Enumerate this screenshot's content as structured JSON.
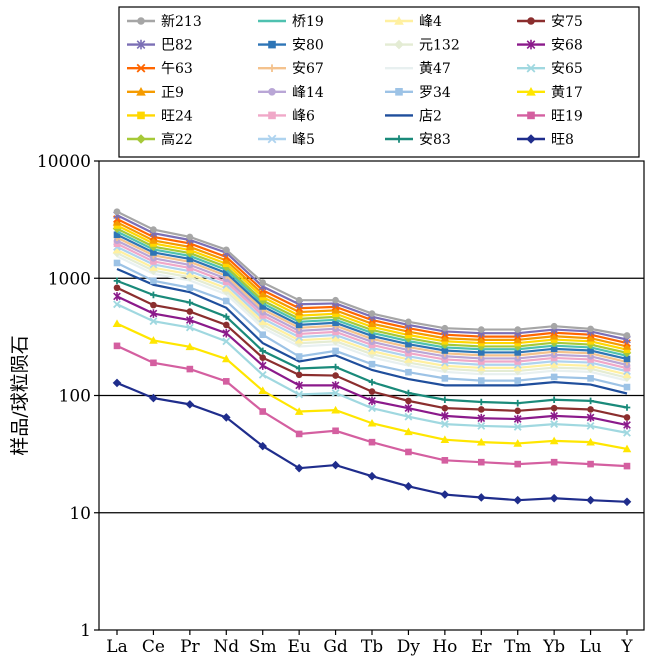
{
  "chart_data": {
    "type": "line",
    "yscale": "log",
    "ylim": [
      1,
      10000
    ],
    "yticks": [
      "1",
      "10",
      "100",
      "1000",
      "10000"
    ],
    "ylabel": "样品/球粒陨石",
    "xlabel": "",
    "categories": [
      "La",
      "Ce",
      "Pr",
      "Nd",
      "Sm",
      "Eu",
      "Gd",
      "Tb",
      "Dy",
      "Ho",
      "Er",
      "Tm",
      "Yb",
      "Lu",
      "Y"
    ],
    "grid": "horizontal",
    "legend_position": "top",
    "series": [
      {
        "name": "新213",
        "color": "#a6a6a6",
        "marker": "circle",
        "values": [
          3700,
          2600,
          2250,
          1750,
          920,
          650,
          650,
          500,
          425,
          375,
          365,
          365,
          390,
          370,
          325
        ]
      },
      {
        "name": "巴82",
        "color": "#7b6fb5",
        "marker": "star",
        "values": [
          3450,
          2420,
          2120,
          1650,
          850,
          600,
          610,
          470,
          400,
          352,
          340,
          340,
          365,
          352,
          300
        ]
      },
      {
        "name": "午63",
        "color": "#ff6600",
        "marker": "x",
        "values": [
          3200,
          2250,
          1980,
          1520,
          790,
          555,
          570,
          440,
          375,
          330,
          318,
          318,
          343,
          330,
          280
        ]
      },
      {
        "name": "正9",
        "color": "#f59b00",
        "marker": "triangle",
        "values": [
          3000,
          2100,
          1850,
          1420,
          735,
          515,
          532,
          410,
          350,
          308,
          298,
          298,
          320,
          308,
          262
        ]
      },
      {
        "name": "旺24",
        "color": "#ffd700",
        "marker": "square",
        "values": [
          2820,
          1980,
          1740,
          1330,
          690,
          480,
          498,
          385,
          328,
          290,
          280,
          280,
          300,
          290,
          246
        ]
      },
      {
        "name": "高22",
        "color": "#a6c938",
        "marker": "diamond",
        "values": [
          2650,
          1860,
          1640,
          1250,
          645,
          450,
          468,
          362,
          308,
          272,
          262,
          262,
          282,
          272,
          231
        ]
      },
      {
        "name": "桥19",
        "color": "#4fc1b0",
        "marker": "none",
        "values": [
          2500,
          1760,
          1550,
          1180,
          610,
          425,
          442,
          342,
          291,
          257,
          248,
          248,
          266,
          257,
          218
        ]
      },
      {
        "name": "安80",
        "color": "#2e75b6",
        "marker": "square",
        "values": [
          2350,
          1660,
          1460,
          1110,
          575,
          400,
          417,
          322,
          274,
          242,
          233,
          233,
          250,
          242,
          205
        ]
      },
      {
        "name": "安67",
        "color": "#f4c28d",
        "marker": "plus",
        "values": [
          2220,
          1570,
          1380,
          1050,
          543,
          378,
          394,
          304,
          259,
          229,
          220,
          220,
          236,
          229,
          193
        ]
      },
      {
        "name": "峰14",
        "color": "#b9a6d6",
        "marker": "circle",
        "values": [
          2090,
          1480,
          1300,
          990,
          512,
          356,
          371,
          287,
          244,
          216,
          207,
          207,
          222,
          216,
          182
        ]
      },
      {
        "name": "峰6",
        "color": "#f0a8c8",
        "marker": "square",
        "values": [
          1970,
          1390,
          1225,
          932,
          482,
          335,
          349,
          270,
          230,
          203,
          195,
          195,
          209,
          203,
          171
        ]
      },
      {
        "name": "峰5",
        "color": "#aed3ef",
        "marker": "x",
        "values": [
          1850,
          1310,
          1150,
          876,
          453,
          315,
          328,
          254,
          216,
          191,
          183,
          183,
          196,
          191,
          161
        ]
      },
      {
        "name": "峰4",
        "color": "#fff0a0",
        "marker": "triangle",
        "values": [
          1740,
          1230,
          1080,
          823,
          426,
          296,
          308,
          239,
          203,
          179,
          172,
          172,
          184,
          179,
          151
        ]
      },
      {
        "name": "元132",
        "color": "#e4ecd4",
        "marker": "diamond",
        "values": [
          1640,
          1160,
          1020,
          775,
          401,
          279,
          290,
          225,
          191,
          169,
          162,
          162,
          173,
          169,
          142
        ]
      },
      {
        "name": "黄47",
        "color": "#e8f0f0",
        "marker": "none",
        "values": [
          1540,
          1090,
          958,
          729,
          377,
          262,
          273,
          211,
          180,
          159,
          152,
          152,
          163,
          159,
          134
        ]
      },
      {
        "name": "罗34",
        "color": "#9dc3e6",
        "marker": "square",
        "values": [
          1350,
          950,
          830,
          640,
          330,
          215,
          240,
          185,
          158,
          140,
          134,
          134,
          144,
          140,
          118
        ]
      },
      {
        "name": "店2",
        "color": "#1f4e9c",
        "marker": "none",
        "values": [
          1200,
          880,
          760,
          560,
          280,
          195,
          220,
          165,
          138,
          122,
          122,
          122,
          130,
          124,
          104
        ]
      },
      {
        "name": "安83",
        "color": "#1a8a7a",
        "marker": "plus",
        "values": [
          950,
          720,
          620,
          470,
          240,
          170,
          175,
          130,
          105,
          92,
          88,
          86,
          92,
          90,
          79
        ]
      },
      {
        "name": "安75",
        "color": "#8b2e2e",
        "marker": "circle",
        "values": [
          830,
          590,
          520,
          400,
          210,
          150,
          148,
          108,
          90,
          78,
          76,
          74,
          78,
          76,
          65
        ]
      },
      {
        "name": "安68",
        "color": "#8b1a8b",
        "marker": "star",
        "values": [
          700,
          500,
          440,
          340,
          180,
          122,
          122,
          90,
          78,
          67,
          64,
          63,
          67,
          65,
          56
        ]
      },
      {
        "name": "安65",
        "color": "#a0d8e0",
        "marker": "x",
        "values": [
          600,
          430,
          380,
          290,
          150,
          102,
          105,
          78,
          66,
          57,
          55,
          54,
          57,
          55,
          48
        ]
      },
      {
        "name": "黄17",
        "color": "#ffe600",
        "marker": "triangle",
        "values": [
          410,
          295,
          260,
          205,
          110,
          73,
          75,
          58,
          49,
          42,
          40,
          39,
          41,
          40,
          35
        ]
      },
      {
        "name": "旺19",
        "color": "#d45fa0",
        "marker": "square",
        "values": [
          265,
          190,
          168,
          132,
          73,
          47,
          50,
          40,
          33,
          28,
          27,
          26,
          27,
          26,
          25
        ]
      },
      {
        "name": "旺8",
        "color": "#1f2d8c",
        "marker": "diamond",
        "values": [
          128,
          95,
          84,
          65,
          37,
          24,
          25.5,
          20.5,
          16.8,
          14.3,
          13.5,
          12.8,
          13.3,
          12.8,
          12.4
        ]
      }
    ]
  }
}
